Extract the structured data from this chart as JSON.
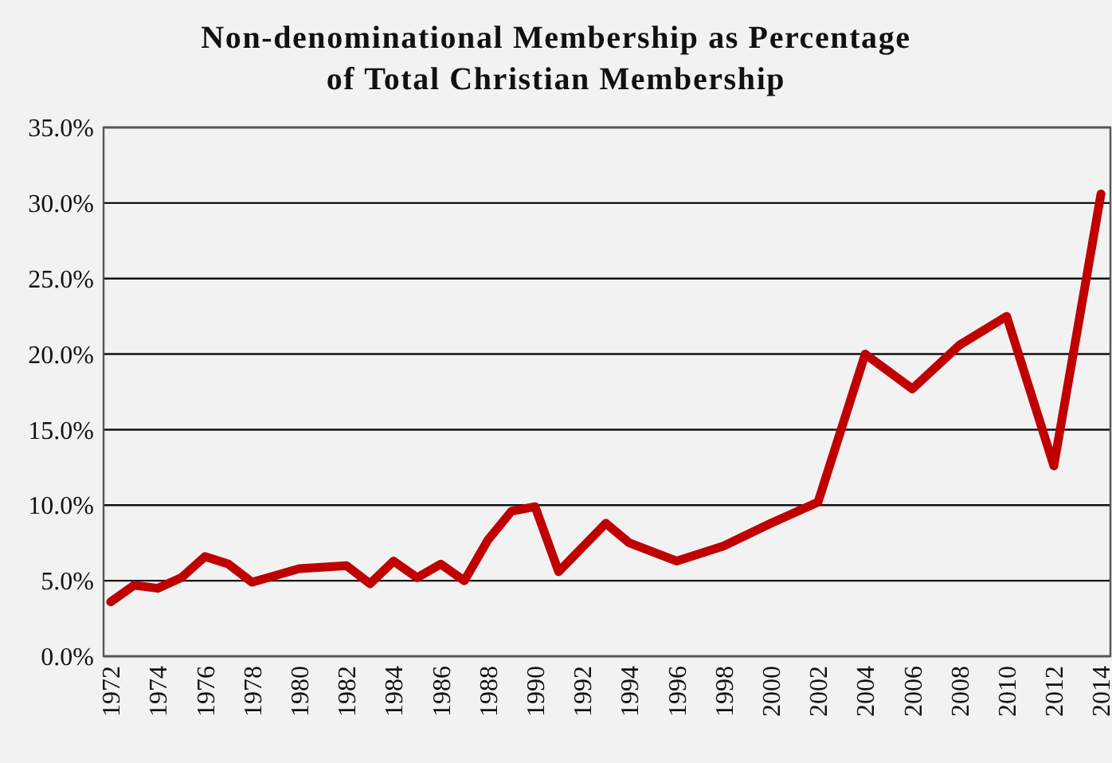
{
  "chart_data": {
    "type": "line",
    "title": "Non-denominational Membership as Percentage of Total Christian Membership",
    "x": [
      1972,
      1973,
      1974,
      1975,
      1976,
      1977,
      1978,
      1980,
      1982,
      1983,
      1984,
      1985,
      1986,
      1987,
      1988,
      1989,
      1990,
      1991,
      1993,
      1994,
      1996,
      1998,
      2000,
      2002,
      2004,
      2006,
      2008,
      2010,
      2012,
      2014
    ],
    "series": [
      {
        "color": "#c00000",
        "values": [
          3.6,
          4.7,
          4.5,
          5.2,
          6.6,
          6.1,
          4.9,
          5.8,
          6.0,
          4.8,
          6.3,
          5.2,
          6.1,
          5.0,
          7.7,
          9.6,
          9.9,
          5.6,
          8.8,
          7.5,
          6.3,
          7.3,
          8.8,
          10.2,
          20.0,
          17.7,
          20.6,
          22.5,
          12.6,
          30.6
        ]
      }
    ],
    "xlim": [
      1971.7,
      2014.4
    ],
    "xticks": [
      1972,
      1974,
      1976,
      1978,
      1980,
      1982,
      1984,
      1986,
      1988,
      1990,
      1992,
      1994,
      1996,
      1998,
      2000,
      2002,
      2004,
      2006,
      2008,
      2010,
      2012,
      2014
    ],
    "ylim": [
      0,
      35
    ],
    "yticks": [
      {
        "value": 0,
        "label": "0.0%"
      },
      {
        "value": 5,
        "label": "5.0%"
      },
      {
        "value": 10,
        "label": "10.0%"
      },
      {
        "value": 15,
        "label": "15.0%"
      },
      {
        "value": 20,
        "label": "20.0%"
      },
      {
        "value": 25,
        "label": "25.0%"
      },
      {
        "value": 30,
        "label": "30.0%"
      },
      {
        "value": 35,
        "label": "35.0%"
      }
    ],
    "grid": "y",
    "marker": "none",
    "line_style": "solid"
  }
}
